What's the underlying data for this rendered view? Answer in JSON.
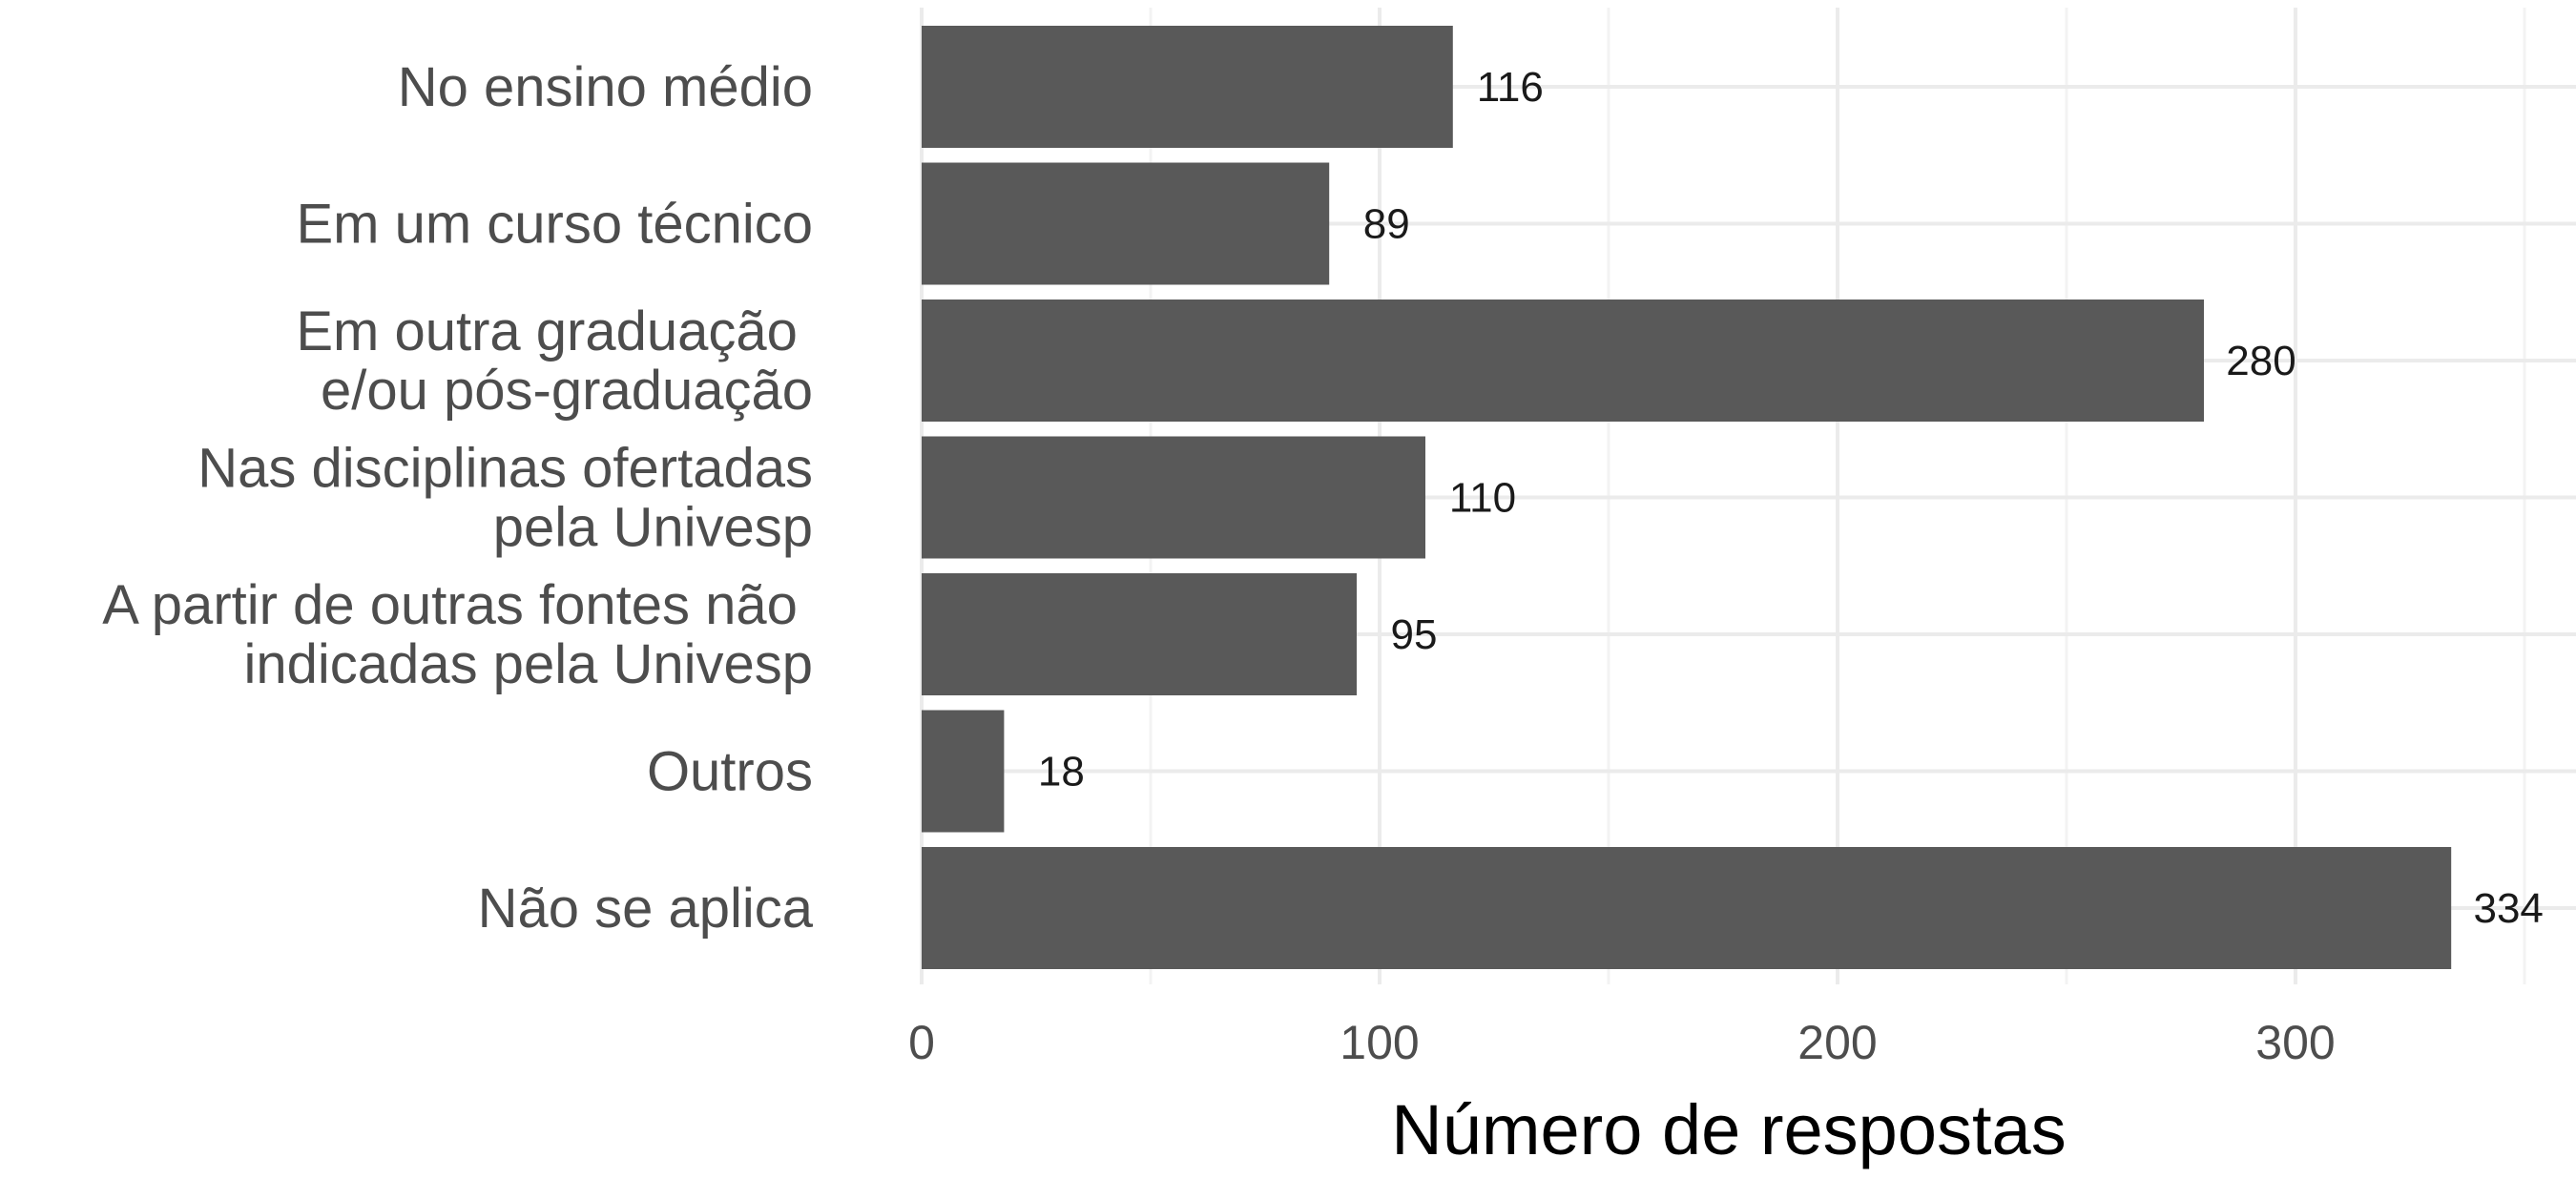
{
  "chart_data": {
    "type": "bar",
    "orientation": "horizontal",
    "categories": [
      "No ensino médio",
      "Em um curso técnico",
      "Em outra graduação \ne/ou pós-graduação",
      "Nas disciplinas ofertadas\npela Univesp",
      "A partir de outras fontes não \nindicadas pela Univesp",
      "Outros",
      "Não se aplica"
    ],
    "values": [
      116,
      89,
      280,
      110,
      95,
      18,
      334
    ],
    "data_labels": [
      "116",
      "89",
      "280",
      "110",
      "95",
      "18",
      "334"
    ],
    "xlabel": "Número de respostas",
    "ylabel": "",
    "title": "",
    "xlim": [
      0,
      350
    ],
    "xticks": [
      0,
      100,
      200,
      300
    ],
    "xtick_labels": [
      "0",
      "100",
      "200",
      "300"
    ],
    "grid": true,
    "legend": "none",
    "colors": {
      "bar": "#595959",
      "grid_major": "#ebebeb",
      "grid_minor": "#f3f3f3",
      "background": "#ffffff"
    }
  }
}
